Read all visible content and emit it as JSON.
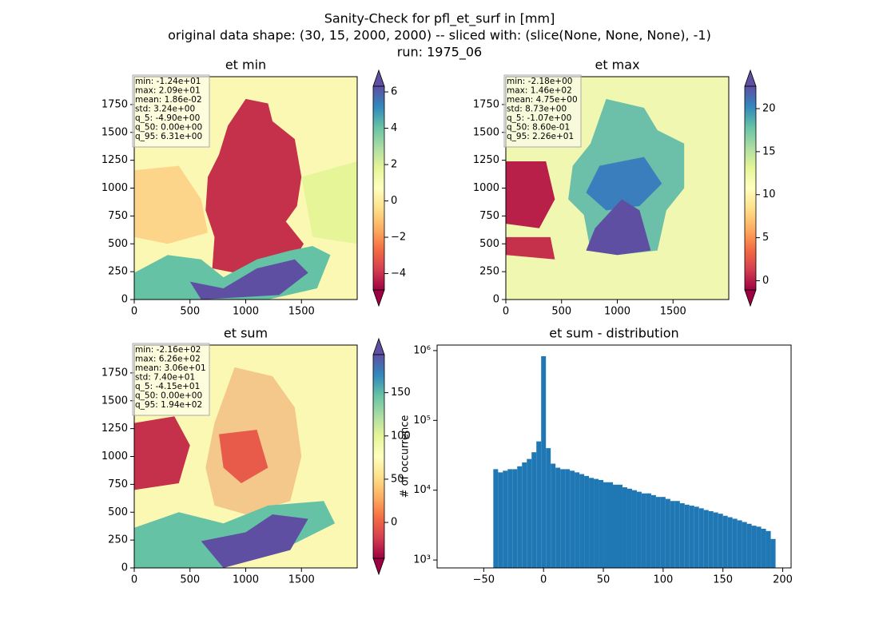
{
  "suptitle": [
    "Sanity-Check for pfl_et_surf in [mm]",
    "original data shape: (30, 15, 2000, 2000) -- sliced with: (slice(None, None, None), -1)",
    "run: 1975_06"
  ],
  "chart_data": [
    {
      "type": "heatmap",
      "title": "et min",
      "colormap": "Spectral",
      "stats": [
        "min: -1.24e+01",
        "max: 2.09e+01",
        "mean: 1.86e-02",
        "std: 3.24e+00",
        "q_5: -4.90e+00",
        "q_50: 0.00e+00",
        "q_95: 6.31e+00"
      ],
      "xlim": [
        0,
        2000
      ],
      "ylim": [
        0,
        2000
      ],
      "xticks": [
        0,
        500,
        1000,
        1500
      ],
      "yticks": [
        0,
        250,
        500,
        750,
        1000,
        1250,
        1500,
        1750
      ],
      "colorbar_lim": [
        -4.9,
        6.31
      ],
      "colorbar_ticks": [
        {
          "value": -4,
          "label": "−4"
        },
        {
          "value": -2,
          "label": "−2"
        },
        0,
        2,
        4,
        6
      ]
    },
    {
      "type": "heatmap",
      "title": "et max",
      "colormap": "Spectral",
      "stats": [
        "min: -2.18e+00",
        "max: 1.46e+02",
        "mean: 4.75e+00",
        "std: 8.73e+00",
        "q_5: -1.07e+00",
        "q_50: 8.60e-01",
        "q_95: 2.26e+01"
      ],
      "xlim": [
        0,
        2000
      ],
      "ylim": [
        0,
        2000
      ],
      "xticks": [
        0,
        500,
        1000,
        1500
      ],
      "yticks": [
        0,
        250,
        500,
        750,
        1000,
        1250,
        1500,
        1750
      ],
      "colorbar_lim": [
        -1.07,
        22.6
      ],
      "colorbar_ticks": [
        0,
        5,
        10,
        15,
        20
      ]
    },
    {
      "type": "heatmap",
      "title": "et sum",
      "colormap": "Spectral",
      "stats": [
        "min: -2.16e+02",
        "max: 6.26e+02",
        "mean: 3.06e+01",
        "std: 7.40e+01",
        "q_5: -4.15e+01",
        "q_50: 0.00e+00",
        "q_95: 1.94e+02"
      ],
      "xlim": [
        0,
        2000
      ],
      "ylim": [
        0,
        2000
      ],
      "xticks": [
        0,
        500,
        1000,
        1500
      ],
      "yticks": [
        0,
        250,
        500,
        750,
        1000,
        1250,
        1500,
        1750
      ],
      "colorbar_lim": [
        -41.5,
        194
      ],
      "colorbar_ticks": [
        0,
        50,
        100,
        150
      ]
    },
    {
      "type": "histogram",
      "title": "et sum - distribution",
      "y_label": "# of occurrence",
      "color": "#1f77b4",
      "yscale": "log",
      "bins": [
        -42,
        -38,
        -34,
        -30,
        -26,
        -22,
        -18,
        -14,
        -10,
        -6,
        -2,
        2,
        6,
        10,
        14,
        18,
        22,
        26,
        30,
        34,
        38,
        42,
        46,
        50,
        54,
        58,
        62,
        66,
        70,
        74,
        78,
        82,
        86,
        90,
        94,
        98,
        102,
        106,
        110,
        114,
        118,
        122,
        126,
        130,
        134,
        138,
        142,
        146,
        150,
        154,
        158,
        162,
        166,
        170,
        174,
        178,
        182,
        186,
        190,
        194
      ],
      "values": [
        20000,
        18000,
        19000,
        20000,
        20000,
        22000,
        25000,
        28000,
        35000,
        50000,
        830000,
        40000,
        24000,
        21000,
        20000,
        20000,
        19000,
        18000,
        17000,
        16000,
        15000,
        14500,
        14000,
        13000,
        13000,
        12000,
        12000,
        11000,
        10500,
        10000,
        9500,
        9000,
        9000,
        8500,
        8000,
        8000,
        7500,
        7000,
        7000,
        6500,
        6200,
        6000,
        5800,
        5500,
        5200,
        5000,
        4800,
        4600,
        4300,
        4100,
        3900,
        3700,
        3500,
        3300,
        3100,
        3000,
        2800,
        2600,
        2000
      ],
      "xlim": [
        -89,
        207
      ],
      "xticks": [
        {
          "value": -50,
          "label": "−50"
        },
        0,
        50,
        100,
        150,
        200
      ],
      "ylim": [
        770,
        1200000
      ],
      "yticks": [
        {
          "value": 1000,
          "label": "10³"
        },
        {
          "value": 10000,
          "label": "10⁴"
        },
        {
          "value": 100000,
          "label": "10⁵"
        },
        {
          "value": 1000000,
          "label": "10⁶"
        }
      ]
    }
  ]
}
